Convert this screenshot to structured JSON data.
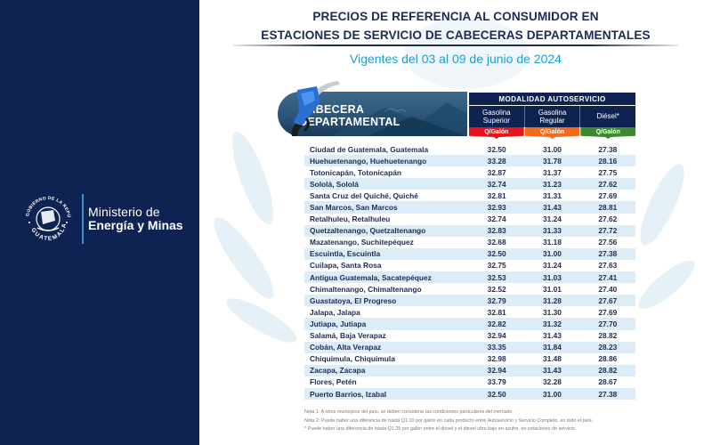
{
  "ministry": {
    "seal_top_text": "GOBIERNO DE LA REPÚBLICA",
    "seal_bottom_text": "GUATEMALA",
    "line1": "Ministerio de",
    "line2": "Energía y Minas"
  },
  "header": {
    "title_line1": "PRECIOS DE REFERENCIA AL CONSUMIDOR EN",
    "title_line2": "ESTACIONES DE SERVICIO DE CABECERAS DEPARTAMENTALES",
    "subtitle": "Vigentes del 03 al 09 de junio de 2024"
  },
  "table": {
    "row_header_line1": "CABECERA",
    "row_header_line2": "DEPARTAMENTAL",
    "group_header": "MODALIDAD AUTOSERVICIO",
    "columns": [
      {
        "line1": "Gasolina",
        "line2": "Superior",
        "unit": "Q/Galón",
        "color": "#e8141b"
      },
      {
        "line1": "Gasolina",
        "line2": "Regular",
        "unit": "Q/Galón",
        "color": "#f26b1d"
      },
      {
        "line1": "Diésel*",
        "line2": "",
        "unit": "Q/Galón",
        "color": "#3a8a2e"
      }
    ],
    "rows": [
      {
        "name": "Ciudad de Guatemala, Guatemala",
        "superior": "32.50",
        "regular": "31.00",
        "diesel": "27.38"
      },
      {
        "name": "Huehuetenango, Huehuetenango",
        "superior": "33.28",
        "regular": "31.78",
        "diesel": "28.16"
      },
      {
        "name": "Totonicapán, Totonicapán",
        "superior": "32.87",
        "regular": "31.37",
        "diesel": "27.75"
      },
      {
        "name": "Sololá, Sololá",
        "superior": "32.74",
        "regular": "31.23",
        "diesel": "27.62"
      },
      {
        "name": "Santa Cruz del Quiché, Quiché",
        "superior": "32.81",
        "regular": "31.31",
        "diesel": "27.69"
      },
      {
        "name": "San Marcos, San Marcos",
        "superior": "32.93",
        "regular": "31.43",
        "diesel": "28.81"
      },
      {
        "name": "Retalhuleu, Retalhuleu",
        "superior": "32.74",
        "regular": "31.24",
        "diesel": "27.62"
      },
      {
        "name": "Quetzaltenango, Quetzaltenango",
        "superior": "32.83",
        "regular": "31.33",
        "diesel": "27.72"
      },
      {
        "name": "Mazatenango, Suchitepéquez",
        "superior": "32.68",
        "regular": "31.18",
        "diesel": "27.56"
      },
      {
        "name": "Escuintla, Escuintla",
        "superior": "32.50",
        "regular": "31.00",
        "diesel": "27.38"
      },
      {
        "name": "Cuilapa, Santa Rosa",
        "superior": "32.75",
        "regular": "31.24",
        "diesel": "27.63"
      },
      {
        "name": "Antigua Guatemala, Sacatepéquez",
        "superior": "32.53",
        "regular": "31.03",
        "diesel": "27.41"
      },
      {
        "name": "Chimaltenango, Chimaltenango",
        "superior": "32.52",
        "regular": "31.01",
        "diesel": "27.40"
      },
      {
        "name": "Guastatoya, El Progreso",
        "superior": "32.79",
        "regular": "31.28",
        "diesel": "27.67"
      },
      {
        "name": "Jalapa, Jalapa",
        "superior": "32.81",
        "regular": "31.30",
        "diesel": "27.69"
      },
      {
        "name": "Jutiapa, Jutiapa",
        "superior": "32.82",
        "regular": "31.32",
        "diesel": "27.70"
      },
      {
        "name": "Salamá, Baja Verapaz",
        "superior": "32.94",
        "regular": "31.43",
        "diesel": "28.82"
      },
      {
        "name": "Cobán, Alta Verapaz",
        "superior": "33.35",
        "regular": "31.84",
        "diesel": "28.23"
      },
      {
        "name": "Chiquimula, Chiquimula",
        "superior": "32.98",
        "regular": "31.48",
        "diesel": "28.86"
      },
      {
        "name": "Zacapa, Zacapa",
        "superior": "32.94",
        "regular": "31.43",
        "diesel": "28.82"
      },
      {
        "name": "Flores, Petén",
        "superior": "33.79",
        "regular": "32.28",
        "diesel": "28.67"
      },
      {
        "name": "Puerto Barrios, Izabal",
        "superior": "32.50",
        "regular": "31.00",
        "diesel": "27.38"
      }
    ]
  },
  "notes": [
    "Nota 1: A otros municipios del país, se deben considerar las condiciones particulares del mercado.",
    "Nota 2: Puede haber una diferencia de hasta Q1.10 por galón en cada producto entre Autoservicio y Servicio Completo, en todo el país.",
    "* Puede haber una diferencia de hasta Q1.25 por galón entre el diesel y el diesel ultra bajo en azufre, en estaciones de servicio."
  ],
  "colors": {
    "navy": "#0f2352",
    "title": "#1d2b55",
    "subtitle": "#1aa0d8",
    "stripe": "#dcedf7"
  }
}
